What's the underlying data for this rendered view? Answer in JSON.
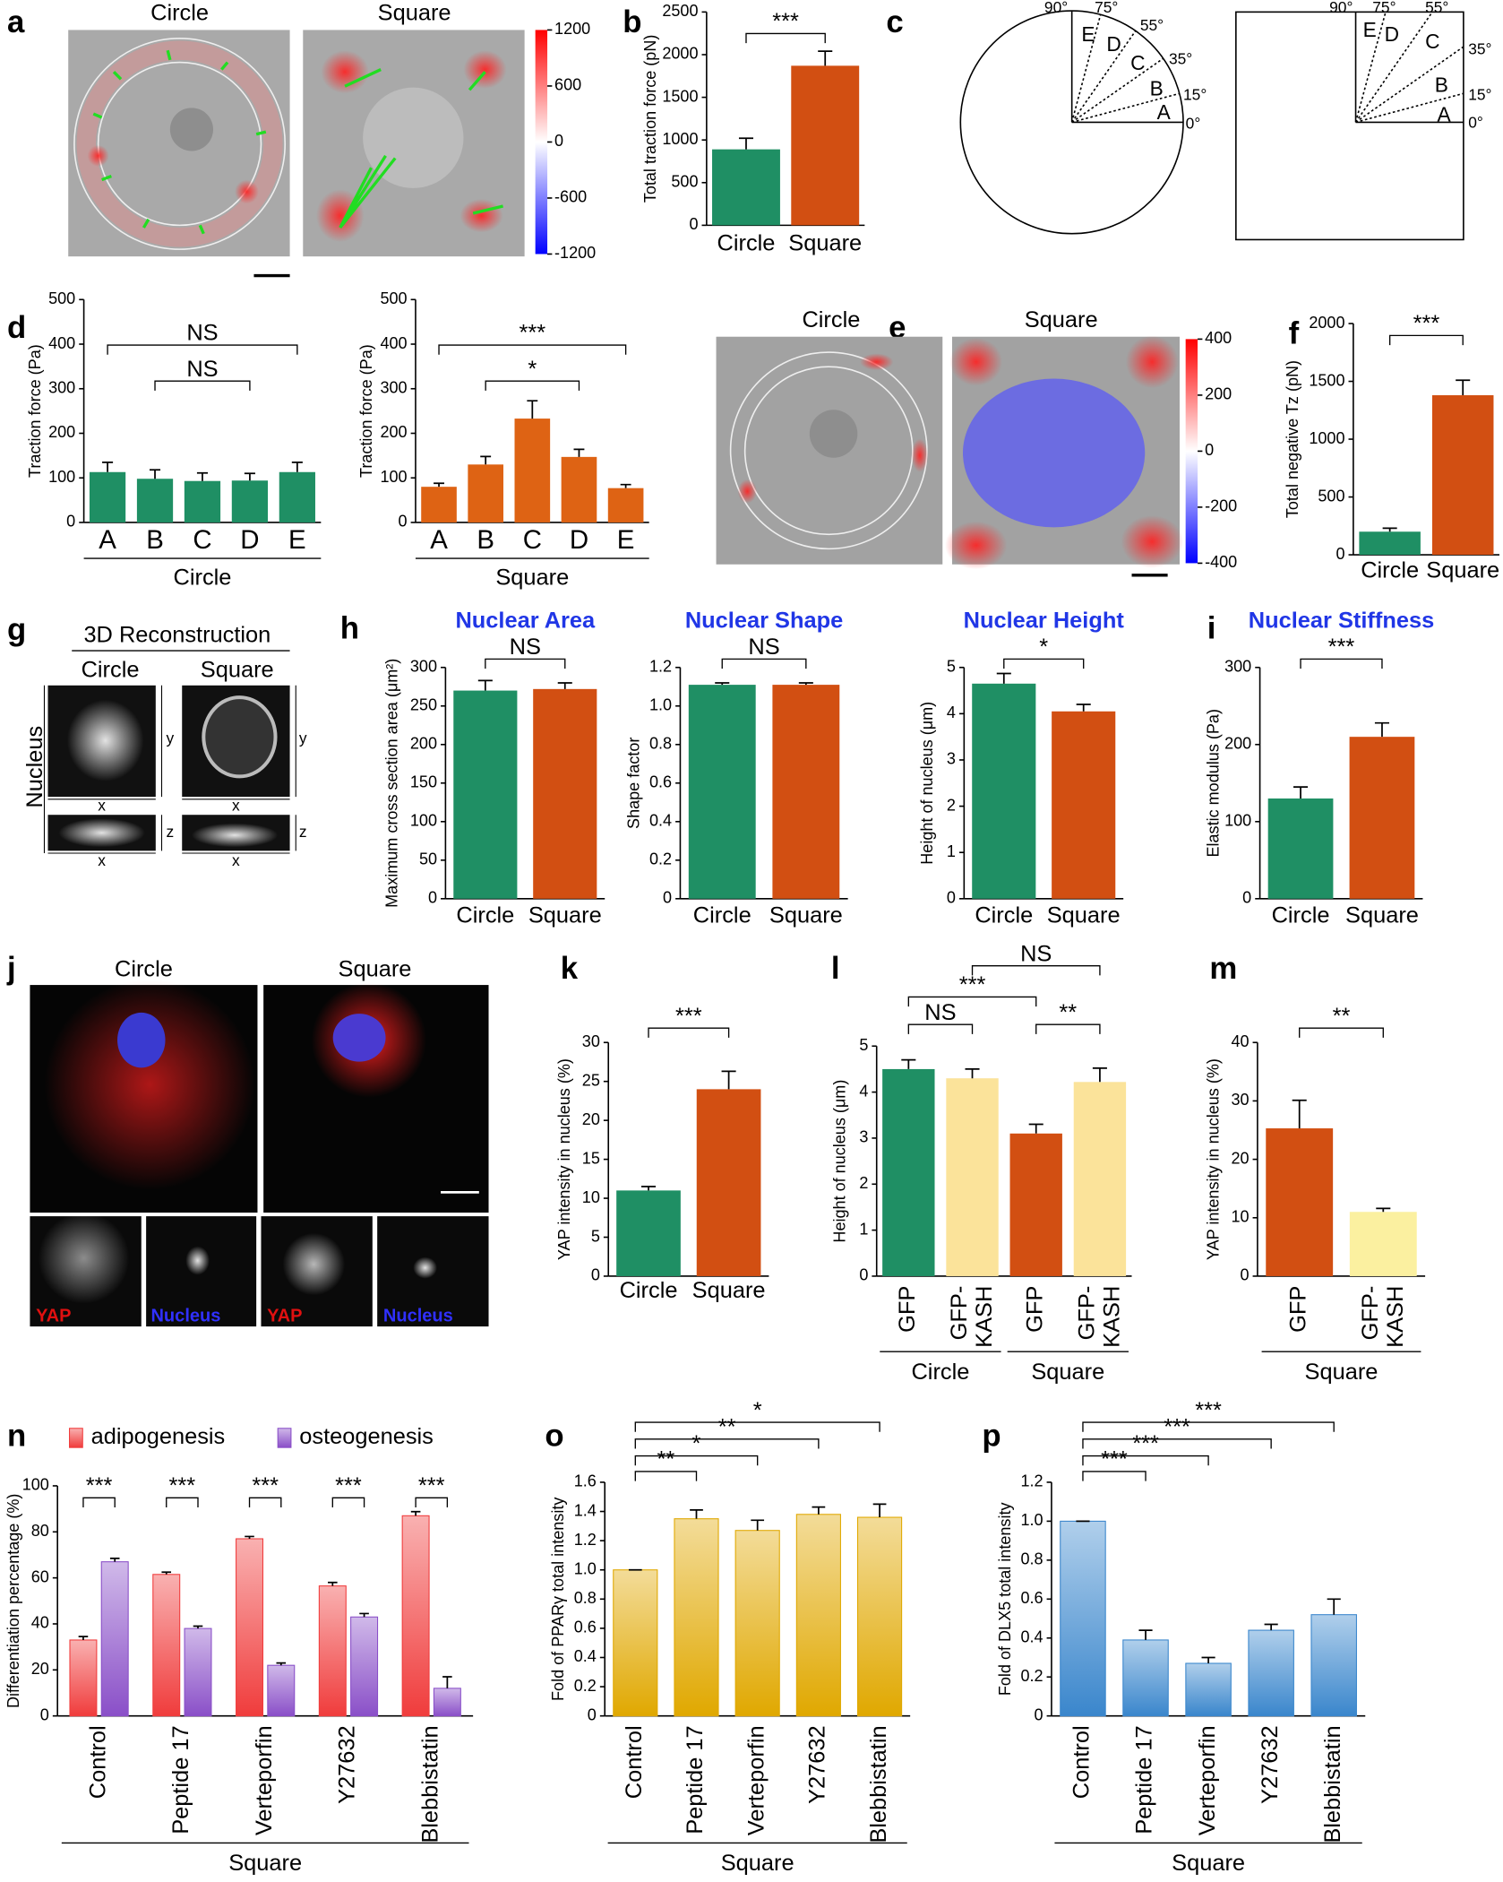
{
  "figure": {
    "a": {
      "letter": "a",
      "titles": [
        "Circle",
        "Square"
      ],
      "colorbar_ticks": [
        1200,
        600,
        0,
        -600,
        -1200
      ]
    },
    "c": {
      "letter": "c",
      "angles": [
        "90°",
        "75°",
        "55°",
        "35°",
        "15°",
        "0°"
      ],
      "sectors": [
        "E",
        "D",
        "C",
        "B",
        "A"
      ]
    },
    "e": {
      "letter": "e",
      "titles": [
        "Circle",
        "Square"
      ],
      "colorbar_ticks": [
        400,
        200,
        0,
        -200,
        -400
      ]
    },
    "g": {
      "letter": "g",
      "title": "3D Reconstruction",
      "titles": [
        "Circle",
        "Square"
      ],
      "side_label": "Nucleus",
      "axes": [
        "x",
        "y",
        "z"
      ]
    },
    "j": {
      "letter": "j",
      "titles": [
        "Circle",
        "Square"
      ],
      "channels": [
        "YAP",
        "Nucleus"
      ]
    }
  },
  "chart_data": [
    {
      "type": "bar",
      "panel": "b",
      "ylabel": "Total traction force (pN)",
      "categories": [
        "Circle",
        "Square"
      ],
      "values": [
        890,
        1870
      ],
      "errors": [
        130,
        170
      ],
      "colors": [
        "#1f8f64",
        "#d24f12"
      ],
      "ylim": [
        0,
        2500
      ],
      "yticks": [
        0,
        500,
        1000,
        1500,
        2000,
        2500
      ],
      "annotations": [
        "***"
      ]
    },
    {
      "type": "bar",
      "panel": "d",
      "ylabel": "Traction force (Pa)",
      "xlabel": "Circle",
      "categories": [
        "A",
        "B",
        "C",
        "D",
        "E"
      ],
      "values": [
        113,
        98,
        93,
        94,
        113
      ],
      "errors": [
        22,
        20,
        18,
        16,
        22
      ],
      "color": "#1f8f64",
      "ylim": [
        0,
        500
      ],
      "yticks": [
        0,
        100,
        200,
        300,
        400,
        500
      ],
      "annotations": [
        "NS",
        "NS"
      ]
    },
    {
      "type": "bar",
      "ylabel": "Traction force (Pa)",
      "xlabel": "Square",
      "categories": [
        "A",
        "B",
        "C",
        "D",
        "E"
      ],
      "values": [
        80,
        130,
        233,
        147,
        77
      ],
      "errors": [
        8,
        18,
        40,
        17,
        8
      ],
      "color": "#de6314",
      "ylim": [
        0,
        500
      ],
      "yticks": [
        0,
        100,
        200,
        300,
        400,
        500
      ],
      "annotations": [
        "***",
        "*"
      ]
    },
    {
      "type": "bar",
      "panel": "f",
      "ylabel": "Total negative Tz (pN)",
      "categories": [
        "Circle",
        "Square"
      ],
      "values": [
        200,
        1380
      ],
      "errors": [
        30,
        130
      ],
      "colors": [
        "#1f8f64",
        "#d24f12"
      ],
      "ylim": [
        0,
        2000
      ],
      "yticks": [
        0,
        500,
        1000,
        1500,
        2000
      ],
      "annotations": [
        "***"
      ]
    },
    {
      "type": "bar",
      "panel": "h",
      "title": "Nuclear Area",
      "ylabel": "Maximum cross section area (μm²)",
      "categories": [
        "Circle",
        "Square"
      ],
      "values": [
        270,
        272
      ],
      "errors": [
        13,
        8
      ],
      "colors": [
        "#1f8f64",
        "#d24f12"
      ],
      "ylim": [
        0,
        300
      ],
      "yticks": [
        0,
        50,
        100,
        150,
        200,
        250,
        300
      ],
      "annotations": [
        "NS"
      ]
    },
    {
      "type": "bar",
      "title": "Nuclear Shape",
      "ylabel": "Shape factor",
      "categories": [
        "Circle",
        "Square"
      ],
      "values": [
        1.11,
        1.11
      ],
      "errors": [
        0.01,
        0.01
      ],
      "colors": [
        "#1f8f64",
        "#d24f12"
      ],
      "ylim": [
        0,
        1.2
      ],
      "yticks": [
        0,
        0.2,
        0.4,
        0.6,
        0.8,
        {
          "value": 1,
          "label": "1.0"
        },
        1.2
      ],
      "annotations": [
        "NS"
      ]
    },
    {
      "type": "bar",
      "title": "Nuclear Height",
      "ylabel": "Height of nucleus (μm)",
      "categories": [
        "Circle",
        "Square"
      ],
      "values": [
        4.65,
        4.05
      ],
      "errors": [
        0.22,
        0.15
      ],
      "colors": [
        "#1f8f64",
        "#d24f12"
      ],
      "ylim": [
        0,
        5
      ],
      "yticks": [
        0,
        1,
        2,
        3,
        4,
        5
      ],
      "annotations": [
        "*"
      ]
    },
    {
      "type": "bar",
      "panel": "i",
      "title": "Nuclear Stiffness",
      "ylabel": "Elastic modulus (Pa)",
      "categories": [
        "Circle",
        "Square"
      ],
      "values": [
        130,
        210
      ],
      "errors": [
        15,
        18
      ],
      "colors": [
        "#1f8f64",
        "#d24f12"
      ],
      "ylim": [
        0,
        300
      ],
      "yticks": [
        0,
        100,
        200,
        300
      ],
      "annotations": [
        "***"
      ]
    },
    {
      "type": "bar",
      "panel": "k",
      "ylabel": "YAP intensity in nucleus (%)",
      "categories": [
        "Circle",
        "Square"
      ],
      "values": [
        11,
        24
      ],
      "errors": [
        0.5,
        2.3
      ],
      "colors": [
        "#1f8f64",
        "#d24f12"
      ],
      "ylim": [
        0,
        30
      ],
      "yticks": [
        0,
        5,
        10,
        15,
        20,
        25,
        30
      ],
      "annotations": [
        "***"
      ]
    },
    {
      "type": "bar",
      "panel": "l",
      "ylabel": "Height of nucleus (μm)",
      "categories": [
        "GFP",
        "GFP-KASH",
        "GFP",
        "GFP-KASH"
      ],
      "values": [
        4.5,
        4.3,
        3.1,
        4.22
      ],
      "errors": [
        0.2,
        0.2,
        0.2,
        0.3
      ],
      "colors": [
        "#1f8f64",
        "#fbe39a",
        "#d24f12",
        "#fbe39a"
      ],
      "ylim": [
        0,
        5
      ],
      "yticks": [
        0,
        1,
        2,
        3,
        4,
        5
      ],
      "groups": [
        "Circle",
        "Square"
      ],
      "annotations": [
        "NS",
        "**",
        "***",
        "NS"
      ]
    },
    {
      "type": "bar",
      "panel": "m",
      "ylabel": "YAP intensity in nucleus (%)",
      "categories": [
        "GFP",
        "GFP-KASH"
      ],
      "values": [
        25.3,
        11
      ],
      "errors": [
        4.8,
        0.6
      ],
      "colors": [
        "#d24f12",
        "#fbf0a0"
      ],
      "ylim": [
        0,
        40
      ],
      "yticks": [
        0,
        10,
        20,
        30,
        40
      ],
      "groups": [
        "Square"
      ],
      "annotations": [
        "**"
      ]
    },
    {
      "type": "bar",
      "panel": "n",
      "ylabel": "Differentiation percentage (%)",
      "categories": [
        "Control",
        "Peptide 17",
        "Verteporfin",
        "Y27632",
        "Blebbistatin"
      ],
      "series": [
        {
          "name": "adipogenesis",
          "color": "#f03c3c",
          "values": [
            33,
            61.5,
            77,
            56.5,
            87
          ],
          "errors": [
            1.5,
            1,
            1,
            1.5,
            1.8
          ]
        },
        {
          "name": "osteogenesis",
          "color": "#8a4fc8",
          "values": [
            67,
            38,
            22,
            43,
            12
          ],
          "errors": [
            1.5,
            1,
            1,
            1.5,
            5
          ]
        }
      ],
      "ylim": [
        0,
        100
      ],
      "yticks": [
        0,
        20,
        40,
        60,
        80,
        100
      ],
      "groups": [
        "Square"
      ],
      "annotations": [
        "***",
        "***",
        "***",
        "***",
        "***"
      ],
      "gradient": true
    },
    {
      "type": "bar",
      "panel": "o",
      "ylabel": "Fold of PPARγ total intensity",
      "categories": [
        "Control",
        "Peptide 17",
        "Verteporfin",
        "Y27632",
        "Blebbistatin"
      ],
      "values": [
        1,
        1.35,
        1.27,
        1.38,
        1.36
      ],
      "errors": [
        0,
        0.06,
        0.07,
        0.05,
        0.09
      ],
      "color": "#e0a800",
      "ylim": [
        0,
        1.6
      ],
      "yticks": [
        0,
        0.2,
        0.4,
        0.6,
        0.8,
        {
          "value": 1,
          "label": "1.0"
        },
        1.2,
        1.4,
        1.6
      ],
      "groups": [
        "Square"
      ],
      "annotations": [
        "**",
        "*",
        "**",
        "*"
      ],
      "gradient": true
    },
    {
      "type": "bar",
      "panel": "p",
      "ylabel": "Fold of DLX5 total intensity",
      "categories": [
        "Control",
        "Peptide 17",
        "Verteporfin",
        "Y27632",
        "Blebbistatin"
      ],
      "values": [
        1,
        0.39,
        0.27,
        0.44,
        0.52
      ],
      "errors": [
        0,
        0.05,
        0.03,
        0.03,
        0.08
      ],
      "color": "#3a86cc",
      "ylim": [
        0,
        1.2
      ],
      "yticks": [
        0,
        0.2,
        0.4,
        0.6,
        0.8,
        {
          "value": 1,
          "label": "1.0"
        },
        1.2
      ],
      "groups": [
        "Square"
      ],
      "annotations": [
        "***",
        "***",
        "***",
        "***"
      ],
      "gradient": true
    }
  ]
}
